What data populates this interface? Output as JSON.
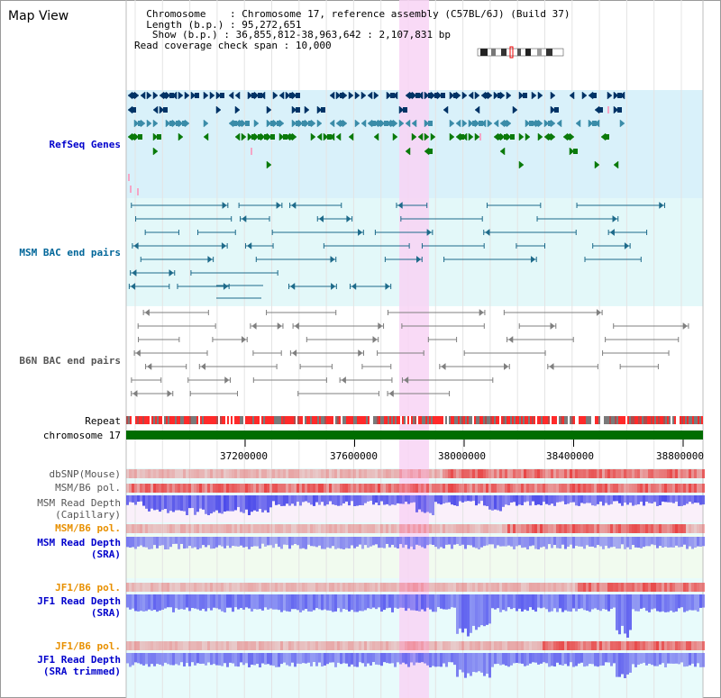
{
  "view": {
    "title": "Map View"
  },
  "info": {
    "chromosome_label": "Chromosome",
    "chromosome_value": "Chromosome 17, reference assembly (C57BL/6J) (Build 37)",
    "length_label": "Length (b.p.)",
    "length_value": "95,272,651",
    "show_label": "Show (b.p.)",
    "show_value": "36,855,812-38,963,642 : 2,107,831 bp",
    "span_label": "Read coverage check span",
    "span_value": "10,000"
  },
  "tracks": {
    "refseq": "RefSeq Genes",
    "msm_bac": "MSM BAC end pairs",
    "b6n_bac": "B6N BAC end pairs",
    "repeat": "Repeat",
    "chromosome": "chromosome 17",
    "dbsnp": "dbSNP(Mouse)",
    "msm_b6_pol_1": "MSM/B6 pol.",
    "msm_depth_cap_1": "MSM Read Depth",
    "msm_depth_cap_2": "(Capillary)",
    "msm_b6_pol_2": "MSM/B6 pol.",
    "msm_depth_sra_1": "MSM Read Depth",
    "msm_depth_sra_2": "(SRA)",
    "jf1_b6_pol_1": "JF1/B6 pol.",
    "jf1_depth_sra_1": "JF1 Read Depth",
    "jf1_depth_sra_2": "(SRA)",
    "jf1_b6_pol_2": "JF1/B6 pol.",
    "jf1_depth_trim_1": "JF1 Read Depth",
    "jf1_depth_trim_2": "(SRA trimmed)"
  },
  "axis": {
    "ticks": [
      "37200000",
      "37600000",
      "38000000",
      "38400000",
      "38800000"
    ]
  },
  "colors": {
    "refseq_bg": "#d9f1fa",
    "bac_bg": "#e3f8f9",
    "highlight": "#f8d4f4",
    "chromosome_bar": "#006d00",
    "label_blue": "#0000cc",
    "label_orange": "#e89000",
    "gene_dark": "#003366",
    "gene_teal": "#3b8ca8",
    "gene_green": "#0a7a0a",
    "bac_teal": "#1d6a8a",
    "bac_gray": "#7f7f7f",
    "depth_blue": "#3a3ae8",
    "snp_red": "#e83a3a"
  }
}
